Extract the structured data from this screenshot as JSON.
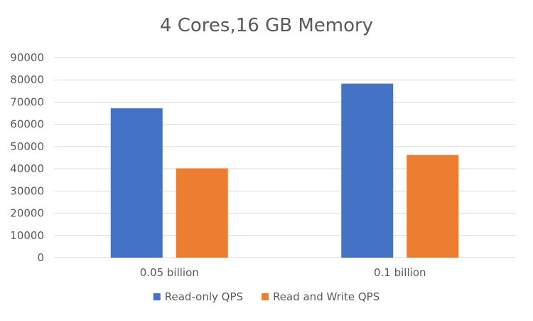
{
  "chart_data": {
    "type": "bar",
    "title": "4 Cores,16 GB Memory",
    "categories": [
      "0.05 billion",
      "0.1 billion"
    ],
    "series": [
      {
        "name": "Read-only QPS",
        "values": [
          67200,
          78300
        ],
        "color": "#4472c4"
      },
      {
        "name": "Read and Write QPS",
        "values": [
          40200,
          46200
        ],
        "color": "#ed7d31"
      }
    ],
    "ylim": [
      0,
      90000
    ],
    "yticks": [
      0,
      10000,
      20000,
      30000,
      40000,
      50000,
      60000,
      70000,
      80000,
      90000
    ],
    "xlabel": "",
    "ylabel": "",
    "grid": true,
    "legend_position": "bottom"
  }
}
